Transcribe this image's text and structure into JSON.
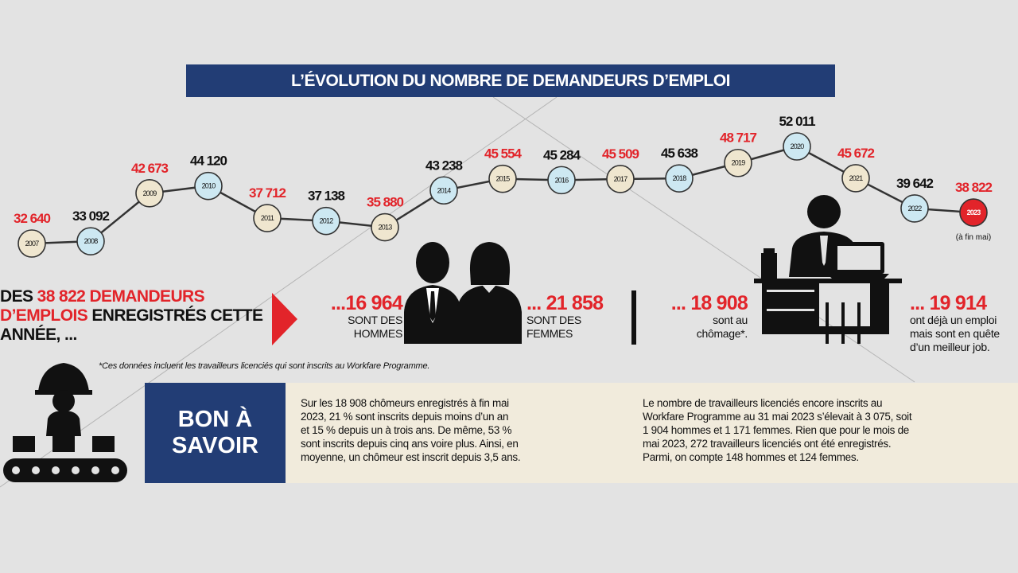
{
  "title": "L’ÉVOLUTION DU NOMBRE DE DEMANDEURS D’EMPLOI",
  "chart_data": {
    "type": "line",
    "title": "L’ÉVOLUTION DU NOMBRE DE DEMANDEURS D’EMPLOI",
    "categories": [
      "2007",
      "2008",
      "2009",
      "2010",
      "2011",
      "2012",
      "2013",
      "2014",
      "2015",
      "2016",
      "2017",
      "2018",
      "2019",
      "2020",
      "2021",
      "2022",
      "2023"
    ],
    "values": [
      32640,
      33092,
      42673,
      44120,
      37712,
      37138,
      35880,
      43238,
      45554,
      45284,
      45509,
      45638,
      48717,
      52011,
      45672,
      39642,
      38822
    ],
    "value_labels": [
      "32 640",
      "33 092",
      "42 673",
      "44 120",
      "37 712",
      "37 138",
      "35 880",
      "43 238",
      "45 554",
      "45 284",
      "45 509",
      "45 638",
      "48 717",
      "52 011",
      "45 672",
      "39 642",
      "38 822"
    ],
    "label_colors": [
      "#e2242a",
      "#111111",
      "#e2242a",
      "#111111",
      "#e2242a",
      "#111111",
      "#e2242a",
      "#111111",
      "#e2242a",
      "#111111",
      "#e2242a",
      "#111111",
      "#e2242a",
      "#111111",
      "#e2242a",
      "#111111",
      "#e2242a"
    ],
    "marker_fills": [
      "#efe6cf",
      "#cde8f2",
      "#efe6cf",
      "#cde8f2",
      "#efe6cf",
      "#cde8f2",
      "#efe6cf",
      "#cde8f2",
      "#efe6cf",
      "#cde8f2",
      "#efe6cf",
      "#cde8f2",
      "#efe6cf",
      "#cde8f2",
      "#efe6cf",
      "#cde8f2",
      "#e2242a"
    ],
    "last_note": "(à fin mai)",
    "grid": false,
    "legend": "none"
  },
  "headline": {
    "part1": "DES ",
    "highlight": "38 822 DEMANDEURS D’EMPLOIS",
    "part2": " ENREGISTRÉS CETTE ANNÉE, ..."
  },
  "stats": {
    "men": {
      "value": "...16 964",
      "desc1": "SONT DES",
      "desc2": "HOMMES"
    },
    "women": {
      "value": "... 21 858",
      "desc1": "SONT DES",
      "desc2": "FEMMES"
    },
    "unemployed": {
      "value": "... 18 908",
      "desc1": "sont au",
      "desc2": "chômage*."
    },
    "employed": {
      "value": "... 19 914",
      "desc1": "ont déjà un emploi",
      "desc2": "mais sont en quête",
      "desc3": "d’un meilleur job."
    }
  },
  "footnote": "*Ces données incluent les travailleurs licenciés qui sont inscrits au Workfare Programme.",
  "bon_a_savoir": {
    "line1": "BON À",
    "line2": "SAVOIR"
  },
  "info_left": [
    "Sur les 18 908 chômeurs enregistrés à fin mai",
    "2023, 21 % sont inscrits depuis moins d’un an",
    "et 15 % depuis un à trois ans. De même, 53 %",
    "sont inscrits depuis cinq ans voire plus. Ainsi, en",
    "moyenne, un chômeur est inscrit depuis 3,5 ans."
  ],
  "info_right": [
    "Le nombre de travailleurs licenciés encore inscrits au",
    "Workfare Programme au 31 mai 2023 s’élevait à 3 075, soit",
    "1 904 hommes et 1 171 femmes. Rien que pour le mois de",
    "mai 2023, 272 travailleurs licenciés ont été enregistrés.",
    "Parmi, on compte 148 hommes et 124 femmes."
  ],
  "colors": {
    "navy": "#223d75",
    "red": "#e2242a",
    "cream": "#f1ebdc",
    "background": "#e3e3e3"
  }
}
